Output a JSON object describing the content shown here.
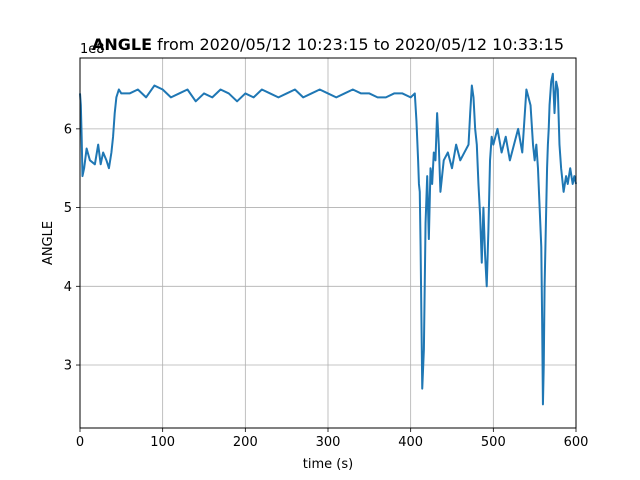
{
  "chart_data": {
    "type": "line",
    "title_bold": "ANGLE",
    "title_rest": " from 2020/05/12 10:23:15 to 2020/05/12 10:33:15",
    "xlabel": "time (s)",
    "ylabel": "ANGLE",
    "offset_label": "1e8",
    "xlim": [
      0,
      600
    ],
    "ylim": [
      2.2,
      6.9
    ],
    "xticks": [
      "0",
      "100",
      "200",
      "300",
      "400",
      "500",
      "600"
    ],
    "yticks": [
      "3",
      "4",
      "5",
      "6"
    ],
    "grid": true,
    "color": "#1f77b4",
    "series": [
      {
        "x": [
          0,
          1,
          2,
          3,
          5,
          8,
          12,
          18,
          22,
          25,
          28,
          32,
          35,
          38,
          40,
          42,
          44,
          47,
          50,
          60,
          70,
          80,
          90,
          100,
          110,
          120,
          130,
          140,
          150,
          160,
          170,
          180,
          190,
          200,
          210,
          220,
          230,
          240,
          250,
          260,
          270,
          280,
          290,
          300,
          310,
          320,
          330,
          340,
          350,
          360,
          370,
          380,
          390,
          400,
          405,
          407,
          409,
          410,
          411,
          412,
          413,
          414,
          416,
          418,
          420,
          422,
          424,
          426,
          428,
          430,
          432,
          434,
          436,
          438,
          440,
          445,
          450,
          455,
          460,
          465,
          470,
          472,
          474,
          476,
          478,
          480,
          482,
          484,
          486,
          488,
          490,
          492,
          494,
          496,
          498,
          500,
          505,
          510,
          515,
          520,
          525,
          530,
          535,
          540,
          545,
          548,
          550,
          552,
          554,
          556,
          558,
          559,
          560,
          561,
          562,
          563,
          564,
          565,
          566,
          567,
          568,
          570,
          572,
          574,
          576,
          578,
          580,
          582,
          585,
          588,
          590,
          593,
          596,
          598,
          600
        ],
        "y": [
          6.45,
          6.3,
          5.9,
          5.4,
          5.5,
          5.75,
          5.6,
          5.55,
          5.8,
          5.55,
          5.7,
          5.6,
          5.5,
          5.7,
          5.9,
          6.2,
          6.4,
          6.5,
          6.45,
          6.45,
          6.5,
          6.4,
          6.55,
          6.5,
          6.4,
          6.45,
          6.5,
          6.35,
          6.45,
          6.4,
          6.5,
          6.45,
          6.35,
          6.45,
          6.4,
          6.5,
          6.45,
          6.4,
          6.45,
          6.5,
          6.4,
          6.45,
          6.5,
          6.45,
          6.4,
          6.45,
          6.5,
          6.45,
          6.45,
          6.4,
          6.4,
          6.45,
          6.45,
          6.4,
          6.45,
          6.1,
          5.6,
          5.3,
          5.2,
          4.5,
          3.6,
          2.7,
          3.2,
          4.8,
          5.4,
          4.6,
          5.5,
          5.3,
          5.7,
          5.6,
          6.2,
          5.8,
          5.2,
          5.4,
          5.6,
          5.7,
          5.5,
          5.8,
          5.6,
          5.7,
          5.8,
          6.2,
          6.55,
          6.4,
          6.0,
          5.8,
          5.3,
          4.9,
          4.3,
          5.0,
          4.4,
          4.0,
          4.7,
          5.6,
          5.9,
          5.8,
          6.0,
          5.7,
          5.9,
          5.6,
          5.8,
          6.0,
          5.7,
          6.5,
          6.3,
          5.8,
          5.6,
          5.8,
          5.5,
          5.0,
          4.5,
          3.6,
          2.5,
          3.0,
          4.0,
          4.5,
          5.0,
          5.5,
          5.8,
          6.0,
          6.3,
          6.6,
          6.7,
          6.2,
          6.6,
          6.5,
          5.8,
          5.5,
          5.2,
          5.4,
          5.3,
          5.5,
          5.3,
          5.4,
          5.3
        ]
      }
    ]
  }
}
